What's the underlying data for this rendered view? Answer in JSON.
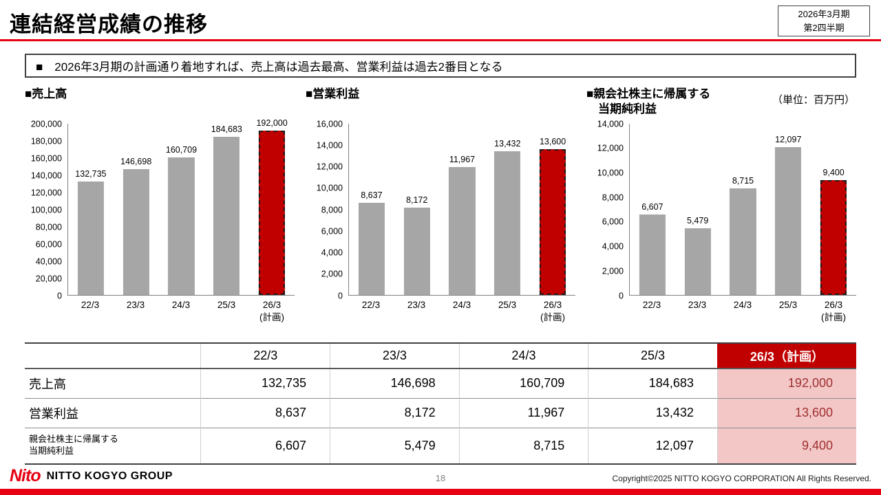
{
  "header": {
    "title": "連結経営成績の推移",
    "period_line1": "2026年3月期",
    "period_line2": "第2四半期"
  },
  "message": "■　2026年3月期の計画通り着地すれば、売上高は過去最高、営業利益は過去2番目となる",
  "unit_note": "（単位：百万円）",
  "chart_data": [
    {
      "type": "bar",
      "title": "■売上高",
      "categories": [
        "22/3",
        "23/3",
        "24/3",
        "25/3",
        "26/3"
      ],
      "plan_note": "(計画)",
      "plan_last": true,
      "values": [
        132735,
        146698,
        160709,
        184683,
        192000
      ],
      "labels": [
        "132,735",
        "146,698",
        "160,709",
        "184,683",
        "192,000"
      ],
      "ylim": [
        0,
        200000
      ],
      "ytick_step": 20000,
      "bar_color": "#a6a6a6",
      "plan_bar_color": "#c00000"
    },
    {
      "type": "bar",
      "title": "■営業利益",
      "categories": [
        "22/3",
        "23/3",
        "24/3",
        "25/3",
        "26/3"
      ],
      "plan_note": "(計画)",
      "plan_last": true,
      "values": [
        8637,
        8172,
        11967,
        13432,
        13600
      ],
      "labels": [
        "8,637",
        "8,172",
        "11,967",
        "13,432",
        "13,600"
      ],
      "ylim": [
        0,
        16000
      ],
      "ytick_step": 2000,
      "bar_color": "#a6a6a6",
      "plan_bar_color": "#c00000"
    },
    {
      "type": "bar",
      "title": "■親会社株主に帰属する\n　当期純利益",
      "categories": [
        "22/3",
        "23/3",
        "24/3",
        "25/3",
        "26/3"
      ],
      "plan_note": "(計画)",
      "plan_last": true,
      "values": [
        6607,
        5479,
        8715,
        12097,
        9400
      ],
      "labels": [
        "6,607",
        "5,479",
        "8,715",
        "12,097",
        "9,400"
      ],
      "ylim": [
        0,
        14000
      ],
      "ytick_step": 2000,
      "bar_color": "#a6a6a6",
      "plan_bar_color": "#c00000"
    }
  ],
  "table": {
    "columns": [
      "",
      "22/3",
      "23/3",
      "24/3",
      "25/3",
      "26/3（計画）"
    ],
    "rows": [
      {
        "label": "売上高",
        "values": [
          "132,735",
          "146,698",
          "160,709",
          "184,683",
          "192,000"
        ]
      },
      {
        "label": "営業利益",
        "values": [
          "8,637",
          "8,172",
          "11,967",
          "13,432",
          "13,600"
        ]
      },
      {
        "label": "親会社株主に帰属する\n当期純利益",
        "values": [
          "6,607",
          "5,479",
          "8,715",
          "12,097",
          "9,400"
        ]
      }
    ]
  },
  "footer": {
    "logo_text": "Nito",
    "company": "NITTO KOGYO GROUP",
    "page_number": "18",
    "copyright": "Copyright©2025 NITTO KOGYO CORPORATION All Rights Reserved."
  },
  "colors": {
    "accent_red": "#e60012",
    "plan_red": "#c00000",
    "bar_gray": "#a6a6a6",
    "plan_cell_bg": "#f4c7c7"
  }
}
